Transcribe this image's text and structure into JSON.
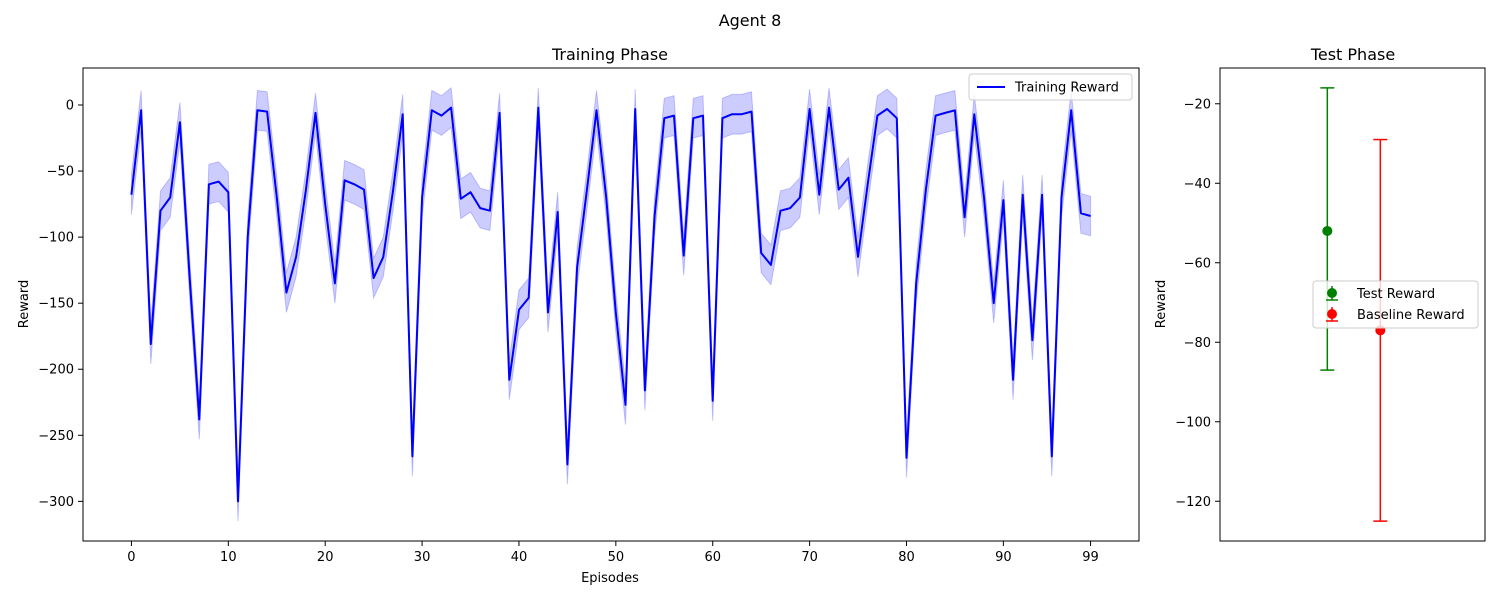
{
  "figure": {
    "title": "Agent 8"
  },
  "chart_data": [
    {
      "type": "line",
      "title": "Training Phase",
      "xlabel": "Episodes",
      "ylabel": "Reward",
      "xlim": [
        -5,
        104
      ],
      "ylim": [
        -330,
        28
      ],
      "xticks": [
        0,
        10,
        20,
        30,
        40,
        50,
        60,
        70,
        80,
        90,
        99
      ],
      "yticks": [
        0,
        -50,
        -100,
        -150,
        -200,
        -250,
        -300
      ],
      "legend": "top-right",
      "band_half_width": 15,
      "series": [
        {
          "name": "Training Reward",
          "color": "#0000ff",
          "band_color": "#0000ff",
          "x": [
            0,
            1,
            2,
            3,
            4,
            5,
            6,
            7,
            8,
            9,
            10,
            11,
            12,
            13,
            14,
            15,
            16,
            17,
            18,
            19,
            20,
            21,
            22,
            23,
            24,
            25,
            26,
            27,
            28,
            29,
            30,
            31,
            32,
            33,
            34,
            35,
            36,
            37,
            38,
            39,
            40,
            41,
            42,
            43,
            44,
            45,
            46,
            47,
            48,
            49,
            50,
            51,
            52,
            53,
            54,
            55,
            56,
            57,
            58,
            59,
            60,
            61,
            62,
            63,
            64,
            65,
            66,
            67,
            68,
            69,
            70,
            71,
            72,
            73,
            74,
            75,
            76,
            77,
            78,
            79,
            80,
            81,
            82,
            83,
            84,
            85,
            86,
            87,
            88,
            89,
            90,
            91,
            92,
            93,
            94,
            95,
            96,
            97,
            98,
            99
          ],
          "values": [
            -68,
            -4,
            -181,
            -80,
            -70,
            -13,
            -130,
            -238,
            -60,
            -58,
            -66,
            -300,
            -100,
            -4,
            -5,
            -70,
            -142,
            -115,
            -65,
            -6,
            -75,
            -135,
            -57,
            -60,
            -64,
            -131,
            -115,
            -65,
            -7,
            -266,
            -70,
            -4,
            -8,
            -2,
            -71,
            -66,
            -78,
            -80,
            -6,
            -208,
            -155,
            -146,
            -2,
            -157,
            -81,
            -272,
            -123,
            -65,
            -4,
            -70,
            -157,
            -227,
            -3,
            -216,
            -84,
            -10,
            -8,
            -114,
            -10,
            -8,
            -224,
            -10,
            -7,
            -7,
            -5,
            -112,
            -121,
            -80,
            -78,
            -70,
            -3,
            -68,
            -2,
            -64,
            -55,
            -115,
            -60,
            -8,
            -3,
            -10,
            -267,
            -135,
            -64,
            -8,
            -6,
            -4,
            -85,
            -7,
            -70,
            -150,
            -72,
            -208,
            -68,
            -178,
            -68,
            -266,
            -70,
            -4,
            -82,
            -84
          ]
        }
      ]
    },
    {
      "type": "errorbar",
      "title": "Test Phase",
      "xlabel": "",
      "ylabel": "Reward",
      "ylim": [
        -130,
        -11
      ],
      "yticks": [
        -20,
        -40,
        -60,
        -80,
        -100,
        -120
      ],
      "legend": "center-right",
      "series": [
        {
          "name": "Test Reward",
          "color": "#008000",
          "x": 0,
          "value": -52,
          "lower": -87,
          "upper": -16
        },
        {
          "name": "Baseline Reward",
          "color": "#ff0000",
          "x": 1,
          "value": -77,
          "lower": -125,
          "upper": -29
        }
      ]
    }
  ]
}
